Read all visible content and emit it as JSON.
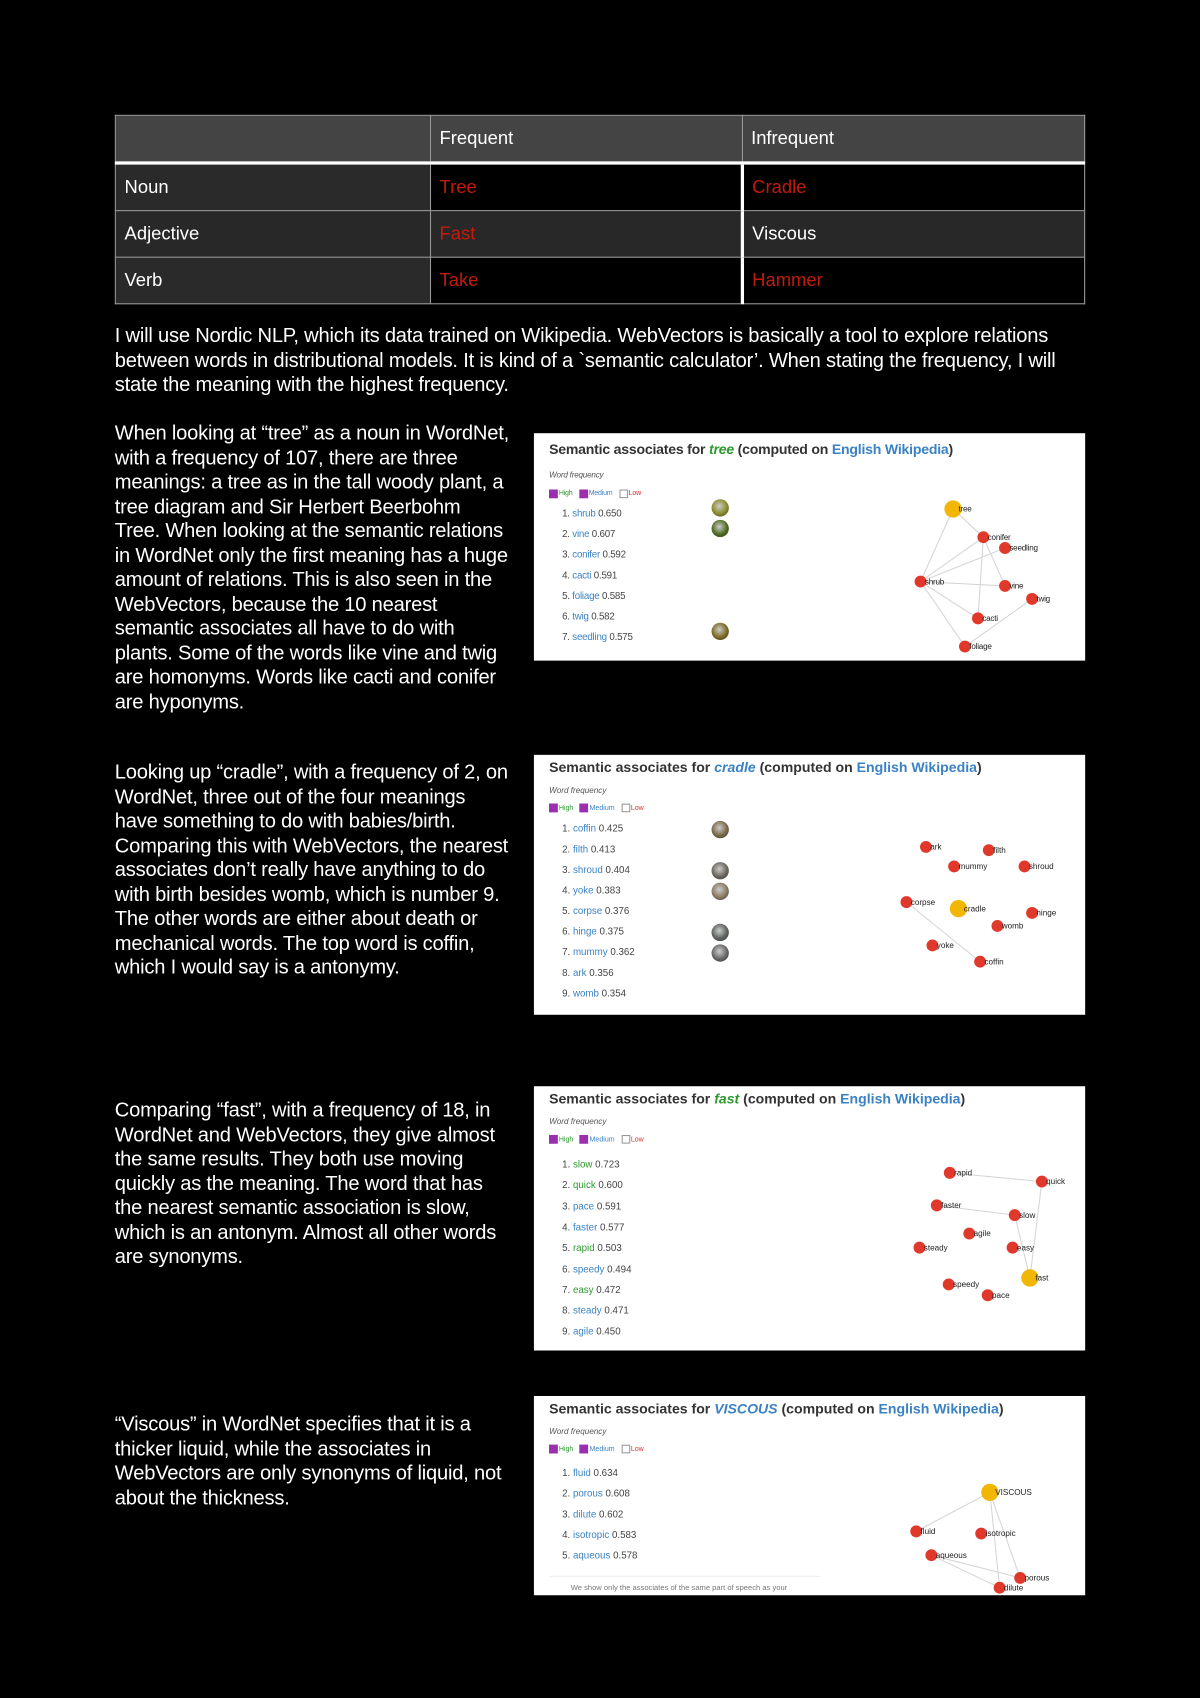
{
  "colors": {
    "high": "#2e9a2e",
    "medium": "#3b82c4",
    "low": "#e03030",
    "node": "#e0392b",
    "center": "#f2b705",
    "tableRed": "#c41a0c"
  },
  "table": {
    "headers": [
      "",
      "Frequent",
      "Infrequent"
    ],
    "rows": [
      {
        "pos": "Noun",
        "frequent": "Tree",
        "infrequent": "Cradle",
        "frequent_red": true,
        "infrequent_red": true
      },
      {
        "pos": "Adjective",
        "frequent": "Fast",
        "infrequent": "Viscous",
        "frequent_red": true,
        "infrequent_red": false
      },
      {
        "pos": "Verb",
        "frequent": "Take",
        "infrequent": "Hammer",
        "frequent_red": true,
        "infrequent_red": true
      }
    ]
  },
  "intro": "I will use Nordic NLP, which its data trained on Wikipedia. WebVectors is basically a tool to explore relations between words in distributional models. It is kind of a `semantic calculator’. When stating the frequency, I will state the meaning with the highest frequency.",
  "sections": [
    {
      "text": "When looking at “tree” as a noun in WordNet, with a frequency of 107, there are three meanings: a tree as in the tall woody plant, a tree diagram and Sir Herbert Beerbohm Tree. When looking at the semantic relations in WordNet only the first meaning has a huge amount of relations. This is also seen in the WebVectors, because the 10 nearest semantic associates all have to do with plants. Some of the words like vine and twig are homonyms. Words like cacti and conifer are hyponyms.",
      "panel": {
        "title_prefix": "Semantic associates for ",
        "word": "tree",
        "word_freq": "high",
        "title_mid": " (computed on ",
        "corpus": "English Wikipedia",
        "title_end": ")",
        "freq_label": "Word frequency",
        "filters": [
          {
            "label": "High",
            "checked": true
          },
          {
            "label": "Medium",
            "checked": true
          },
          {
            "label": "Low",
            "checked": false
          }
        ],
        "items": [
          {
            "rank": "1.",
            "word": "shrub",
            "score": "0.650",
            "freq": "medium",
            "thumb": true
          },
          {
            "rank": "2.",
            "word": "vine",
            "score": "0.607",
            "freq": "medium",
            "thumb": true
          },
          {
            "rank": "3.",
            "word": "conifer",
            "score": "0.592",
            "freq": "medium",
            "thumb": false
          },
          {
            "rank": "4.",
            "word": "cacti",
            "score": "0.591",
            "freq": "medium",
            "thumb": false
          },
          {
            "rank": "5.",
            "word": "foliage",
            "score": "0.585",
            "freq": "medium",
            "thumb": false
          },
          {
            "rank": "6.",
            "word": "twig",
            "score": "0.582",
            "freq": "medium",
            "thumb": false
          },
          {
            "rank": "7.",
            "word": "seedling",
            "score": "0.575",
            "freq": "medium",
            "thumb": true
          }
        ],
        "graph_center": "tree"
      }
    },
    {
      "text": "Looking up “cradle”, with a frequency of 2, on WordNet, three out of the four meanings have something to do with babies/birth. Comparing this with WebVectors, the nearest associates don’t really have anything to do with birth besides womb, which is number 9. The other words are either about death or mechanical words. The top word is coffin, which I would say is a antonymy.",
      "panel": {
        "title_prefix": "Semantic associates for ",
        "word": "cradle",
        "word_freq": "medium",
        "title_mid": " (computed on ",
        "corpus": "English Wikipedia",
        "title_end": ")",
        "freq_label": "Word frequency",
        "filters": [
          {
            "label": "High",
            "checked": true
          },
          {
            "label": "Medium",
            "checked": true
          },
          {
            "label": "Low",
            "checked": false
          }
        ],
        "items": [
          {
            "rank": "1.",
            "word": "coffin",
            "score": "0.425",
            "freq": "medium",
            "thumb": true
          },
          {
            "rank": "2.",
            "word": "filth",
            "score": "0.413",
            "freq": "medium",
            "thumb": false
          },
          {
            "rank": "3.",
            "word": "shroud",
            "score": "0.404",
            "freq": "medium",
            "thumb": true
          },
          {
            "rank": "4.",
            "word": "yoke",
            "score": "0.383",
            "freq": "medium",
            "thumb": true
          },
          {
            "rank": "5.",
            "word": "corpse",
            "score": "0.376",
            "freq": "medium",
            "thumb": false
          },
          {
            "rank": "6.",
            "word": "hinge",
            "score": "0.375",
            "freq": "medium",
            "thumb": true
          },
          {
            "rank": "7.",
            "word": "mummy",
            "score": "0.362",
            "freq": "medium",
            "thumb": true
          },
          {
            "rank": "8.",
            "word": "ark",
            "score": "0.356",
            "freq": "medium",
            "thumb": false
          },
          {
            "rank": "9.",
            "word": "womb",
            "score": "0.354",
            "freq": "medium",
            "thumb": false
          }
        ],
        "graph_center": "cradle"
      }
    },
    {
      "text": "Comparing “fast”, with a frequency of 18, in WordNet and WebVectors, they give almost the same results. They both use moving quickly as the meaning. The word that has the nearest semantic association is slow, which is an antonym. Almost all other words are synonyms.",
      "panel": {
        "title_prefix": "Semantic associates for ",
        "word": "fast",
        "word_freq": "high",
        "title_mid": " (computed on ",
        "corpus": "English Wikipedia",
        "title_end": ")",
        "freq_label": "Word frequency",
        "filters": [
          {
            "label": "High",
            "checked": true
          },
          {
            "label": "Medium",
            "checked": true
          },
          {
            "label": "Low",
            "checked": false
          }
        ],
        "items": [
          {
            "rank": "1.",
            "word": "slow",
            "score": "0.723",
            "freq": "high",
            "thumb": false
          },
          {
            "rank": "2.",
            "word": "quick",
            "score": "0.600",
            "freq": "high",
            "thumb": false
          },
          {
            "rank": "3.",
            "word": "pace",
            "score": "0.591",
            "freq": "medium",
            "thumb": false
          },
          {
            "rank": "4.",
            "word": "faster",
            "score": "0.577",
            "freq": "medium",
            "thumb": false
          },
          {
            "rank": "5.",
            "word": "rapid",
            "score": "0.503",
            "freq": "high",
            "thumb": false
          },
          {
            "rank": "6.",
            "word": "speedy",
            "score": "0.494",
            "freq": "medium",
            "thumb": false
          },
          {
            "rank": "7.",
            "word": "easy",
            "score": "0.472",
            "freq": "high",
            "thumb": false
          },
          {
            "rank": "8.",
            "word": "steady",
            "score": "0.471",
            "freq": "medium",
            "thumb": false
          },
          {
            "rank": "9.",
            "word": "agile",
            "score": "0.450",
            "freq": "medium",
            "thumb": false
          }
        ],
        "graph_center": "fast"
      }
    },
    {
      "text": "“Viscous” in WordNet specifies that it is a thicker liquid, while the associates in WebVectors are only synonyms of liquid, not about the thickness.",
      "panel": {
        "title_prefix": "Semantic associates for ",
        "word": "VISCOUS",
        "word_freq": "medium",
        "title_mid": " (computed on ",
        "corpus": "English Wikipedia",
        "title_end": ")",
        "freq_label": "Word frequency",
        "filters": [
          {
            "label": "High",
            "checked": true
          },
          {
            "label": "Medium",
            "checked": true
          },
          {
            "label": "Low",
            "checked": false
          }
        ],
        "items": [
          {
            "rank": "1.",
            "word": "fluid",
            "score": "0.634",
            "freq": "medium",
            "thumb": false
          },
          {
            "rank": "2.",
            "word": "porous",
            "score": "0.608",
            "freq": "medium",
            "thumb": false
          },
          {
            "rank": "3.",
            "word": "dilute",
            "score": "0.602",
            "freq": "medium",
            "thumb": false
          },
          {
            "rank": "4.",
            "word": "isotropic",
            "score": "0.583",
            "freq": "medium",
            "thumb": false
          },
          {
            "rank": "5.",
            "word": "aqueous",
            "score": "0.578",
            "freq": "medium",
            "thumb": false
          }
        ],
        "graph_center": "VISCOUS",
        "note": "We show only the associates of the same part of speech as your"
      }
    }
  ]
}
